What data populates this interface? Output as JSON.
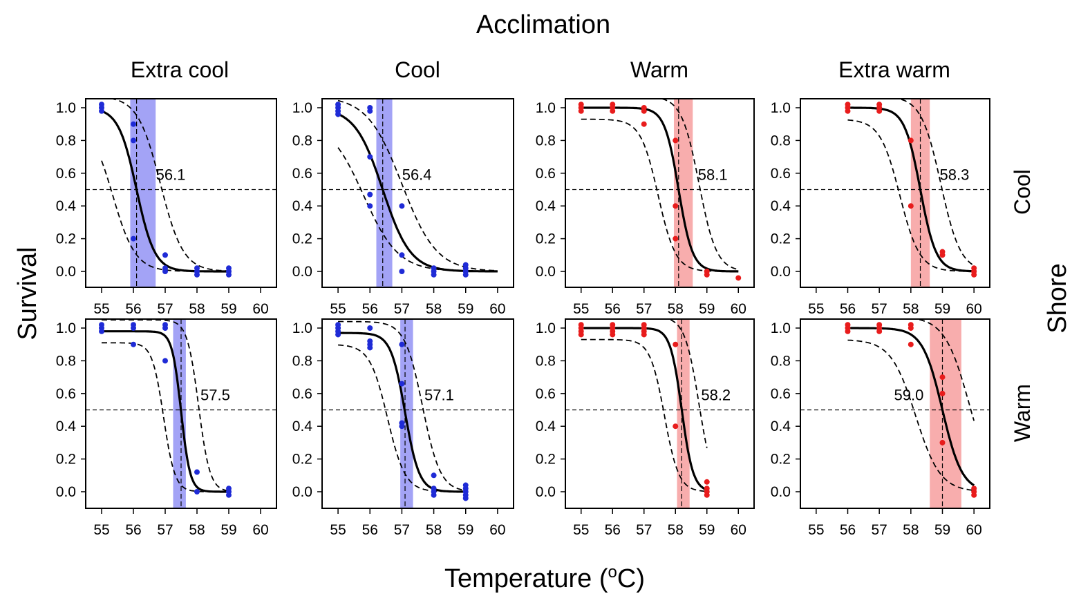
{
  "figure": {
    "top_title": "Acclimation",
    "right_title": "Shore",
    "ylabel": "Survival",
    "xlabel_main": "Temperature (",
    "xlabel_sup": "o",
    "xlabel_end": "C)",
    "columns": [
      "Extra cool",
      "Cool",
      "Warm",
      "Extra warm"
    ],
    "rows": [
      "Cool",
      "Warm"
    ],
    "colors": {
      "blue_ci": "#6b6bf0",
      "red_ci": "#f47a7a",
      "blue_point": "#1f2bd6",
      "red_point": "#e81c1c",
      "axis": "#000000"
    }
  },
  "chart_data": [
    {
      "type": "scatter",
      "row": "Cool",
      "column": "Extra cool",
      "color": "blue",
      "ld50": 56.1,
      "ld50_label": "56.1",
      "ci": [
        55.9,
        56.7
      ],
      "slope": 3.5,
      "fit_range": [
        55,
        59
      ],
      "upper_plateau": 1.0,
      "xlim": [
        54.5,
        60.5
      ],
      "ylim": [
        -0.1,
        1.05
      ],
      "xticks": [
        "55",
        "56",
        "57",
        "58",
        "59",
        "60"
      ],
      "yticks": [
        "0.0",
        "0.2",
        "0.4",
        "0.6",
        "0.8",
        "1.0"
      ],
      "hline": 0.5,
      "points": [
        [
          55,
          1.0
        ],
        [
          55,
          0.98
        ],
        [
          55,
          1.02
        ],
        [
          56,
          0.9
        ],
        [
          56,
          0.8
        ],
        [
          56,
          0.2
        ],
        [
          57,
          0.1
        ],
        [
          57,
          0.0
        ],
        [
          57,
          0.02
        ],
        [
          58,
          0.0
        ],
        [
          58,
          0.02
        ],
        [
          58,
          -0.02
        ],
        [
          59,
          0.0
        ],
        [
          59,
          0.02
        ],
        [
          59,
          -0.02
        ]
      ]
    },
    {
      "type": "scatter",
      "row": "Cool",
      "column": "Cool",
      "color": "blue",
      "ld50": 56.4,
      "ld50_label": "56.4",
      "ci": [
        56.2,
        56.7
      ],
      "slope": 2.3,
      "fit_range": [
        55,
        60
      ],
      "upper_plateau": 1.0,
      "xlim": [
        54.5,
        60.5
      ],
      "ylim": [
        -0.1,
        1.05
      ],
      "xticks": [
        "55",
        "56",
        "57",
        "58",
        "59",
        "60"
      ],
      "yticks": [
        "0.0",
        "0.2",
        "0.4",
        "0.6",
        "0.8",
        "1.0"
      ],
      "hline": 0.5,
      "points": [
        [
          55,
          1.0
        ],
        [
          55,
          0.98
        ],
        [
          55,
          1.02
        ],
        [
          55,
          0.96
        ],
        [
          56,
          1.0
        ],
        [
          56,
          0.98
        ],
        [
          56,
          0.7
        ],
        [
          56,
          0.47
        ],
        [
          56,
          0.4
        ],
        [
          57,
          0.4
        ],
        [
          57,
          0.1
        ],
        [
          57,
          0.0
        ],
        [
          58,
          0.0
        ],
        [
          58,
          0.02
        ],
        [
          58,
          -0.02
        ],
        [
          59,
          0.0
        ],
        [
          59,
          0.02
        ],
        [
          59,
          -0.02
        ],
        [
          59,
          0.04
        ]
      ]
    },
    {
      "type": "scatter",
      "row": "Cool",
      "column": "Warm",
      "color": "red",
      "ld50": 58.1,
      "ld50_label": "58.1",
      "ci": [
        57.95,
        58.55
      ],
      "slope": 4.5,
      "fit_range": [
        55,
        60
      ],
      "upper_plateau": 1.0,
      "xlim": [
        54.5,
        60.5
      ],
      "ylim": [
        -0.1,
        1.05
      ],
      "xticks": [
        "55",
        "56",
        "57",
        "58",
        "59",
        "60"
      ],
      "yticks": [
        "0.0",
        "0.2",
        "0.4",
        "0.6",
        "0.8",
        "1.0"
      ],
      "hline": 0.5,
      "points": [
        [
          55,
          1.0
        ],
        [
          55,
          0.98
        ],
        [
          55,
          1.02
        ],
        [
          56,
          1.0
        ],
        [
          56,
          0.98
        ],
        [
          56,
          1.02
        ],
        [
          57,
          1.0
        ],
        [
          57,
          0.98
        ],
        [
          57,
          0.9
        ],
        [
          58,
          0.8
        ],
        [
          58,
          0.4
        ],
        [
          58,
          0.2
        ],
        [
          59,
          0.0
        ],
        [
          59,
          -0.02
        ],
        [
          60,
          -0.04
        ]
      ]
    },
    {
      "type": "scatter",
      "row": "Cool",
      "column": "Extra warm",
      "color": "red",
      "ld50": 58.3,
      "ld50_label": "58.3",
      "ci": [
        58.0,
        58.6
      ],
      "slope": 4.0,
      "fit_range": [
        56,
        60
      ],
      "upper_plateau": 1.0,
      "xlim": [
        54.5,
        60.5
      ],
      "ylim": [
        -0.1,
        1.05
      ],
      "xticks": [
        "55",
        "56",
        "57",
        "58",
        "59",
        "60"
      ],
      "yticks": [
        "0.0",
        "0.2",
        "0.4",
        "0.6",
        "0.8",
        "1.0"
      ],
      "hline": 0.5,
      "points": [
        [
          56,
          1.0
        ],
        [
          56,
          0.98
        ],
        [
          56,
          1.02
        ],
        [
          57,
          1.0
        ],
        [
          57,
          1.02
        ],
        [
          57,
          0.98
        ],
        [
          58,
          0.8
        ],
        [
          58,
          0.4
        ],
        [
          59,
          0.12
        ],
        [
          59,
          0.1
        ],
        [
          60,
          0.0
        ],
        [
          60,
          -0.02
        ],
        [
          60,
          0.02
        ]
      ]
    },
    {
      "type": "scatter",
      "row": "Warm",
      "column": "Extra cool",
      "color": "blue",
      "ld50": 57.5,
      "ld50_label": "57.5",
      "ci": [
        57.25,
        57.65
      ],
      "slope": 7.0,
      "fit_range": [
        55,
        59
      ],
      "upper_plateau": 0.98,
      "xlim": [
        54.5,
        60.5
      ],
      "ylim": [
        -0.1,
        1.05
      ],
      "xticks": [
        "55",
        "56",
        "57",
        "58",
        "59",
        "60"
      ],
      "yticks": [
        "0.0",
        "0.2",
        "0.4",
        "0.6",
        "0.8",
        "1.0"
      ],
      "hline": 0.5,
      "points": [
        [
          55,
          1.0
        ],
        [
          55,
          0.98
        ],
        [
          55,
          1.02
        ],
        [
          56,
          1.0
        ],
        [
          56,
          0.9
        ],
        [
          56,
          1.02
        ],
        [
          57,
          1.0
        ],
        [
          57,
          1.02
        ],
        [
          57,
          0.8
        ],
        [
          58,
          0.12
        ],
        [
          58,
          0.0
        ],
        [
          59,
          0.0
        ],
        [
          59,
          0.02
        ],
        [
          59,
          -0.02
        ]
      ]
    },
    {
      "type": "scatter",
      "row": "Warm",
      "column": "Cool",
      "color": "blue",
      "ld50": 57.1,
      "ld50_label": "57.1",
      "ci": [
        56.95,
        57.35
      ],
      "slope": 4.5,
      "fit_range": [
        55,
        59
      ],
      "upper_plateau": 0.97,
      "xlim": [
        54.5,
        60.5
      ],
      "ylim": [
        -0.1,
        1.05
      ],
      "xticks": [
        "55",
        "56",
        "57",
        "58",
        "59",
        "60"
      ],
      "yticks": [
        "0.0",
        "0.2",
        "0.4",
        "0.6",
        "0.8",
        "1.0"
      ],
      "hline": 0.5,
      "points": [
        [
          55,
          1.0
        ],
        [
          55,
          0.98
        ],
        [
          55,
          1.02
        ],
        [
          55,
          0.96
        ],
        [
          56,
          1.0
        ],
        [
          56,
          0.92
        ],
        [
          56,
          0.9
        ],
        [
          56,
          0.88
        ],
        [
          57,
          0.9
        ],
        [
          57,
          0.66
        ],
        [
          57,
          0.42
        ],
        [
          57,
          0.4
        ],
        [
          58,
          0.1
        ],
        [
          58,
          0.0
        ],
        [
          58,
          0.02
        ],
        [
          58,
          -0.02
        ],
        [
          59,
          0.0
        ],
        [
          59,
          0.02
        ],
        [
          59,
          -0.02
        ],
        [
          59,
          0.04
        ],
        [
          59,
          -0.04
        ]
      ]
    },
    {
      "type": "scatter",
      "row": "Warm",
      "column": "Warm",
      "color": "red",
      "ld50": 58.2,
      "ld50_label": "58.2",
      "ci": [
        58.05,
        58.45
      ],
      "slope": 5.5,
      "fit_range": [
        55,
        59
      ],
      "upper_plateau": 1.0,
      "xlim": [
        54.5,
        60.5
      ],
      "ylim": [
        -0.1,
        1.05
      ],
      "xticks": [
        "55",
        "56",
        "57",
        "58",
        "59",
        "60"
      ],
      "yticks": [
        "0.0",
        "0.2",
        "0.4",
        "0.6",
        "0.8",
        "1.0"
      ],
      "hline": 0.5,
      "points": [
        [
          55,
          1.0
        ],
        [
          55,
          0.98
        ],
        [
          55,
          1.02
        ],
        [
          55,
          0.96
        ],
        [
          56,
          1.0
        ],
        [
          56,
          0.98
        ],
        [
          56,
          1.02
        ],
        [
          56,
          0.96
        ],
        [
          57,
          1.0
        ],
        [
          57,
          0.98
        ],
        [
          57,
          1.02
        ],
        [
          57,
          0.96
        ],
        [
          58,
          0.9
        ],
        [
          58,
          0.4
        ],
        [
          59,
          0.06
        ],
        [
          59,
          0.02
        ],
        [
          59,
          0.0
        ],
        [
          59,
          -0.02
        ]
      ]
    },
    {
      "type": "scatter",
      "row": "Warm",
      "column": "Extra warm",
      "color": "red",
      "ld50": 59.0,
      "ld50_label": "59.0",
      "ci": [
        58.6,
        59.6
      ],
      "slope": 3.2,
      "fit_range": [
        56,
        60
      ],
      "upper_plateau": 1.0,
      "xlim": [
        54.5,
        60.5
      ],
      "ylim": [
        -0.1,
        1.05
      ],
      "xticks": [
        "55",
        "56",
        "57",
        "58",
        "59",
        "60"
      ],
      "yticks": [
        "0.0",
        "0.2",
        "0.4",
        "0.6",
        "0.8",
        "1.0"
      ],
      "hline": 0.5,
      "points": [
        [
          56,
          1.0
        ],
        [
          56,
          0.98
        ],
        [
          56,
          1.02
        ],
        [
          57,
          1.0
        ],
        [
          57,
          0.98
        ],
        [
          57,
          1.02
        ],
        [
          58,
          1.0
        ],
        [
          58,
          1.02
        ],
        [
          58,
          0.9
        ],
        [
          59,
          0.7
        ],
        [
          59,
          0.6
        ],
        [
          59,
          0.3
        ],
        [
          60,
          0.0
        ],
        [
          60,
          -0.02
        ],
        [
          60,
          0.02
        ]
      ]
    }
  ]
}
